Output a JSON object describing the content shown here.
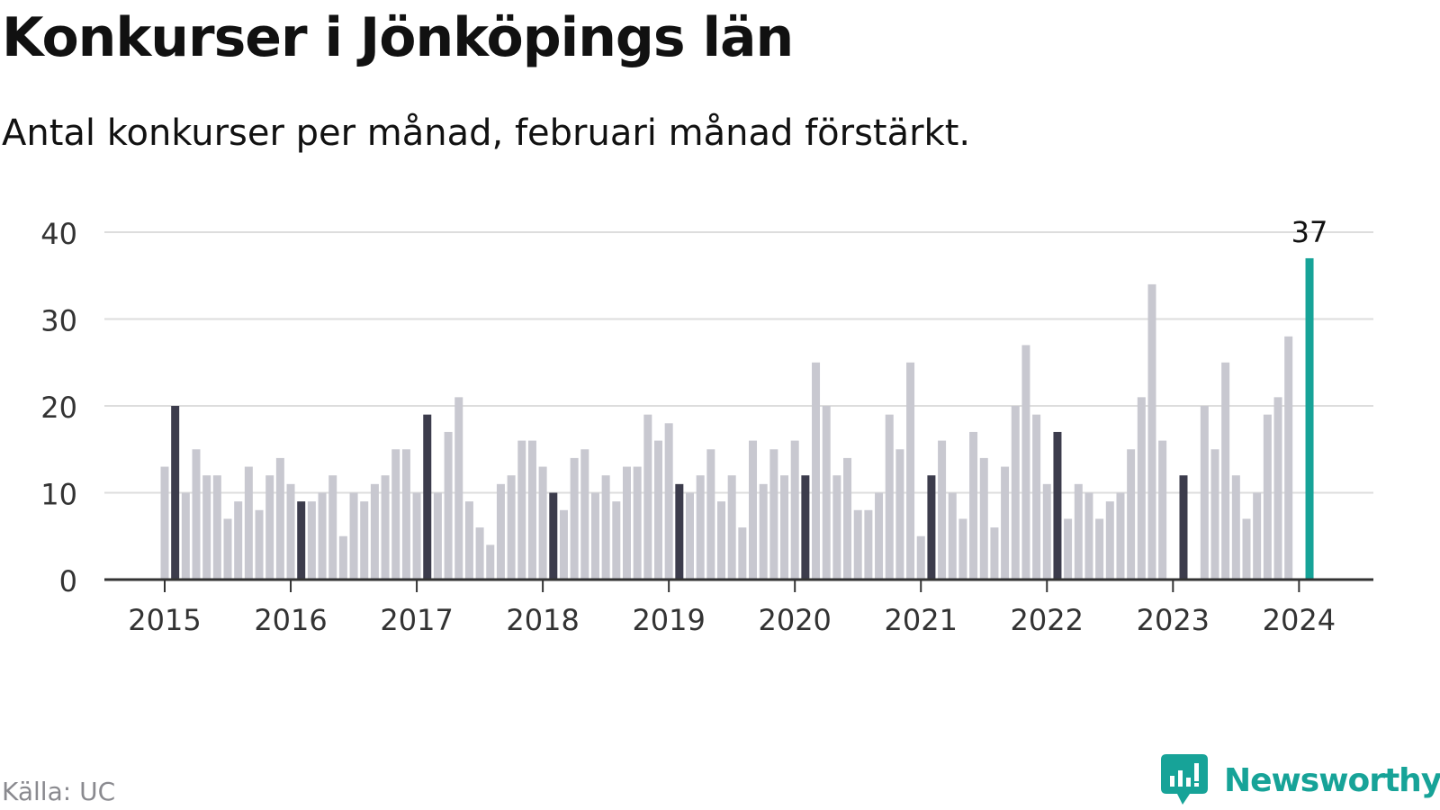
{
  "chart_data": {
    "type": "bar",
    "title": "Konkurser i Jönköpings län",
    "subtitle": "Antal konkurser per månad, februari månad förstärkt.",
    "ylim": [
      0,
      40
    ],
    "yticks": [
      0,
      10,
      20,
      30,
      40
    ],
    "x_tick_labels": [
      "2015",
      "2016",
      "2017",
      "2018",
      "2019",
      "2020",
      "2021",
      "2022",
      "2023",
      "2024"
    ],
    "grid": true,
    "start": "2015-01",
    "highlight_month": "februari",
    "values": [
      13,
      20,
      10,
      15,
      12,
      12,
      7,
      9,
      13,
      8,
      12,
      14,
      11,
      9,
      9,
      10,
      12,
      5,
      10,
      9,
      11,
      12,
      15,
      15,
      10,
      19,
      10,
      17,
      21,
      9,
      6,
      4,
      11,
      12,
      16,
      16,
      13,
      10,
      8,
      14,
      15,
      10,
      12,
      9,
      13,
      13,
      19,
      16,
      18,
      11,
      10,
      12,
      15,
      9,
      12,
      6,
      16,
      11,
      15,
      12,
      16,
      12,
      25,
      20,
      12,
      14,
      8,
      8,
      10,
      19,
      15,
      25,
      5,
      12,
      16,
      10,
      7,
      17,
      14,
      6,
      13,
      20,
      27,
      19,
      11,
      17,
      7,
      11,
      10,
      7,
      9,
      10,
      15,
      21,
      34,
      16,
      0,
      12,
      0,
      20,
      15,
      25,
      12,
      7,
      10,
      19,
      21,
      28,
      0,
      37
    ],
    "data_labels": [
      {
        "index": 109,
        "text": "37"
      }
    ],
    "colors": {
      "bar": "#c8c8d0",
      "february": "#3c3c4c",
      "latest": "#17a398",
      "grid": "#dddddd",
      "axis": "#333333",
      "tick_text": "#333333"
    }
  },
  "footer": {
    "source": "Källa: UC",
    "brand": "Newsworthy",
    "brand_icon": "newsworthy-logo-icon",
    "brand_color": "#17a398"
  }
}
